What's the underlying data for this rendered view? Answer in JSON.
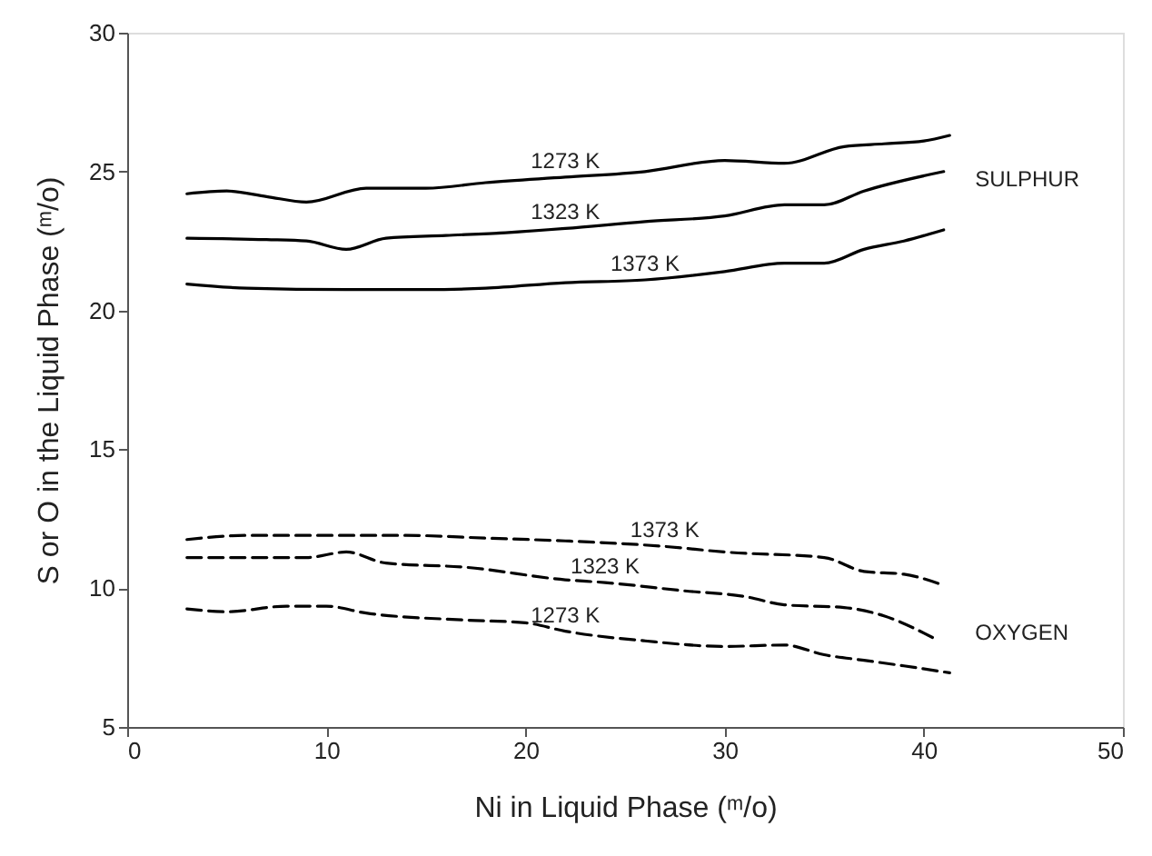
{
  "chart_data": {
    "type": "line",
    "xlabel": "Ni in Liquid Phase (ᵐ/o)",
    "ylabel": "S or O in the Liquid Phase (ᵐ/o)",
    "xlim": [
      0,
      50
    ],
    "xticks": [
      0,
      10,
      20,
      30,
      40,
      50
    ],
    "ylim": [
      5,
      30
    ],
    "yticks": [
      5,
      10,
      15,
      20,
      25,
      30
    ],
    "grid": false,
    "marker": "none",
    "series": [
      {
        "name": "1273 K",
        "color": "#000000",
        "line_style": "solid",
        "x": [
          3,
          5,
          7,
          9,
          12,
          15,
          18,
          22,
          26,
          30,
          33,
          36,
          38,
          40,
          41.3
        ],
        "values": [
          24.2,
          24.3,
          24.1,
          23.9,
          24.4,
          24.4,
          24.6,
          24.8,
          25.0,
          25.4,
          25.3,
          25.9,
          26.0,
          26.1,
          26.3
        ]
      },
      {
        "name": "1323 K",
        "color": "#000000",
        "line_style": "solid",
        "x": [
          3,
          7,
          9,
          11,
          13,
          16,
          19,
          22,
          26,
          30,
          33,
          35,
          37,
          41
        ],
        "values": [
          22.6,
          22.55,
          22.5,
          22.2,
          22.6,
          22.7,
          22.8,
          22.95,
          23.2,
          23.4,
          23.8,
          23.8,
          24.3,
          25.0
        ]
      },
      {
        "name": "1373 K",
        "color": "#000000",
        "line_style": "solid",
        "x": [
          3,
          6,
          11,
          15,
          18,
          22,
          26,
          30,
          33,
          35,
          37,
          39,
          41
        ],
        "values": [
          20.95,
          20.8,
          20.75,
          20.75,
          20.8,
          21.0,
          21.1,
          21.4,
          21.7,
          21.7,
          22.2,
          22.5,
          22.9
        ]
      },
      {
        "name": "1373 K",
        "color": "#000000",
        "line_style": "dashed",
        "x": [
          3,
          6,
          9,
          14,
          18,
          22,
          27,
          30,
          35,
          37,
          39,
          41
        ],
        "values": [
          11.75,
          11.9,
          11.9,
          11.9,
          11.8,
          11.7,
          11.5,
          11.3,
          11.1,
          10.6,
          10.5,
          10.1
        ]
      },
      {
        "name": "1323 K",
        "color": "#000000",
        "line_style": "dashed",
        "x": [
          3,
          6,
          9,
          11,
          13,
          17,
          22,
          24,
          28,
          31,
          33,
          36,
          38,
          40.5
        ],
        "values": [
          11.1,
          11.1,
          11.1,
          11.3,
          10.9,
          10.75,
          10.3,
          10.2,
          9.9,
          9.7,
          9.4,
          9.3,
          9.0,
          8.2
        ]
      },
      {
        "name": "1273 K",
        "color": "#000000",
        "line_style": "dashed",
        "x": [
          3,
          5,
          8,
          10,
          12,
          17,
          20,
          22,
          26,
          30,
          33,
          35,
          37,
          39,
          41.3
        ],
        "values": [
          9.25,
          9.15,
          9.35,
          9.35,
          9.1,
          8.85,
          8.75,
          8.45,
          8.1,
          7.9,
          7.95,
          7.6,
          7.4,
          7.2,
          6.95
        ]
      }
    ],
    "annotations": [
      "SULPHUR",
      "OXYGEN"
    ]
  }
}
